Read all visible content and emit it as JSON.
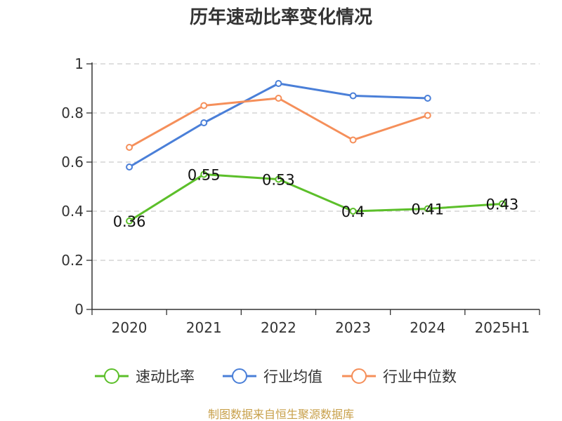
{
  "chart_data": {
    "type": "line",
    "title": "历年速动比率变化情况",
    "categories": [
      "2020",
      "2021",
      "2022",
      "2023",
      "2024",
      "2025H1"
    ],
    "ylim": [
      0,
      1
    ],
    "yticks": [
      "0",
      "0.2",
      "0.4",
      "0.6",
      "0.8",
      "1"
    ],
    "ytick_values": [
      0,
      0.2,
      0.4,
      0.6,
      0.8,
      1
    ],
    "grid": true,
    "legend_position": "bottom",
    "series": [
      {
        "name": "速动比率",
        "color": "#5cbf2a",
        "values": [
          0.36,
          0.55,
          0.53,
          0.4,
          0.41,
          0.43
        ],
        "labels": [
          "0.36",
          "0.55",
          "0.53",
          "0.4",
          "0.41",
          "0.43"
        ]
      },
      {
        "name": "行业均值",
        "color": "#4a7fd8",
        "values": [
          0.58,
          0.76,
          0.92,
          0.87,
          0.86,
          null
        ]
      },
      {
        "name": "行业中位数",
        "color": "#f58f5a",
        "values": [
          0.66,
          0.83,
          0.86,
          0.69,
          0.79,
          null
        ]
      }
    ],
    "source": "制图数据来自恒生聚源数据库"
  }
}
